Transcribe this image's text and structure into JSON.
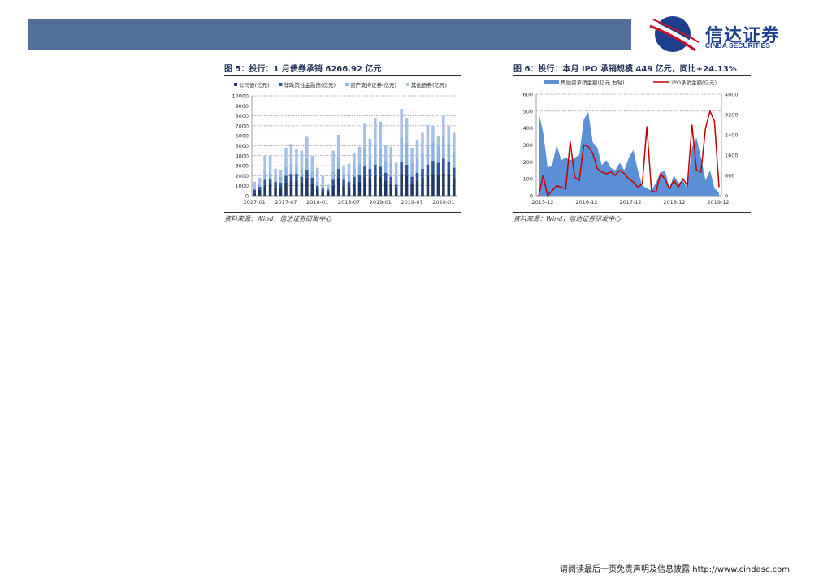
{
  "header": {
    "logo_cn": "信达证券",
    "logo_en": "CINDA SECURITIES",
    "colors": {
      "banner": "#4f6f98",
      "logo_blue": "#1b3f8e",
      "logo_red": "#c8102e"
    }
  },
  "figure5": {
    "title": "图 5：投行：1 月债券承销 6266.92 亿元",
    "source": "资料来源：Wind，信达证券研发中心",
    "chart_data": {
      "type": "bar",
      "stacked": true,
      "legend_position": "top",
      "grid": true,
      "ylim": [
        0,
        10000
      ],
      "yticks": [
        "10000",
        "9000",
        "8000",
        "7000",
        "6000",
        "5000",
        "4000",
        "3000",
        "2000",
        "1000",
        "0"
      ],
      "xtick_labels": [
        "2017-01",
        "2017-07",
        "2018-01",
        "2018-07",
        "2019-01",
        "2019-07",
        "2020-01"
      ],
      "series_colors": [
        "#1f3864",
        "#2e5597",
        "#8eb4e3",
        "#a5c0e3"
      ],
      "series": [
        {
          "name": "公司债(亿元)",
          "values": [
            300,
            600,
            1000,
            1200,
            800,
            800,
            1300,
            1500,
            1500,
            1300,
            1800,
            1200,
            700,
            400,
            400,
            1000,
            1800,
            1000,
            900,
            1200,
            1400,
            1900,
            1800,
            2000,
            1900,
            1500,
            1200,
            700,
            2200,
            2000,
            1200,
            1500,
            1800,
            2000,
            2200,
            2100,
            2300,
            2200,
            1800
          ]
        },
        {
          "name": "非政策性金融债(亿元)",
          "values": [
            300,
            300,
            600,
            500,
            600,
            500,
            700,
            700,
            700,
            600,
            800,
            600,
            300,
            300,
            200,
            600,
            900,
            600,
            500,
            700,
            700,
            1100,
            900,
            1100,
            1000,
            800,
            700,
            400,
            1200,
            1100,
            700,
            800,
            900,
            1100,
            1300,
            1200,
            1400,
            1200,
            1000
          ]
        },
        {
          "name": "资产支持证券(亿元)",
          "values": [
            200,
            200,
            800,
            600,
            500,
            600,
            900,
            1000,
            800,
            800,
            1100,
            700,
            400,
            300,
            200,
            900,
            1200,
            600,
            800,
            1000,
            1100,
            1800,
            1200,
            1900,
            1800,
            1200,
            1400,
            800,
            2400,
            2200,
            1400,
            1500,
            1600,
            2000,
            1900,
            1700,
            2200,
            1800,
            1600
          ]
        },
        {
          "name": "其他债券(亿元)",
          "values": [
            600,
            700,
            1600,
            1700,
            800,
            700,
            1900,
            2000,
            1700,
            1800,
            2200,
            1500,
            1400,
            1000,
            300,
            2000,
            2200,
            800,
            1000,
            1400,
            1700,
            2400,
            1800,
            2800,
            2700,
            1600,
            1600,
            1400,
            2900,
            2500,
            1500,
            1800,
            2000,
            2000,
            1600,
            1000,
            2100,
            1800,
            1900
          ]
        }
      ]
    }
  },
  "figure6": {
    "title": "图 6：投行：本月 IPO 承销规模 449 亿元，同比+24.13%",
    "source": "资料来源：Wind，信达证券研发中心",
    "chart_data": {
      "type": "area",
      "legend_position": "top",
      "grid": true,
      "ylim_left": [
        0,
        600
      ],
      "ylim_right": [
        0,
        4000
      ],
      "yticks_left": [
        "600",
        "500",
        "400",
        "300",
        "200",
        "100",
        "0"
      ],
      "yticks_right": [
        "4000",
        "3200",
        "2400",
        "1600",
        "800",
        "0"
      ],
      "xtick_labels": [
        "2015-12",
        "2016-12",
        "2017-12",
        "2018-12",
        "2019-12"
      ],
      "series_colors": [
        "#5b8fd6",
        "#c00000"
      ],
      "series": [
        {
          "name": "再融资承销金额(亿元,右轴)",
          "axis": "right",
          "values": [
            3300,
            2500,
            1100,
            1200,
            2000,
            1400,
            1500,
            1400,
            1500,
            1600,
            3000,
            3300,
            2100,
            1900,
            1200,
            1400,
            1100,
            1000,
            1300,
            1000,
            1500,
            1800,
            1000,
            400,
            300,
            200,
            500,
            900,
            1000,
            300,
            800,
            500,
            600,
            300,
            1900,
            2300,
            1500,
            600,
            1000,
            300,
            100
          ]
        },
        {
          "name": "IPO承销金额(亿元)",
          "axis": "left",
          "values": [
            0,
            120,
            0,
            30,
            60,
            50,
            40,
            320,
            110,
            90,
            300,
            290,
            250,
            160,
            140,
            130,
            140,
            120,
            150,
            130,
            100,
            80,
            50,
            70,
            410,
            30,
            20,
            130,
            100,
            40,
            90,
            50,
            100,
            60,
            420,
            150,
            140,
            400,
            500,
            440,
            50
          ]
        }
      ]
    }
  },
  "footer": {
    "text": "请阅读最后一页免责声明及信息披露 http://www.cindasc.com"
  }
}
